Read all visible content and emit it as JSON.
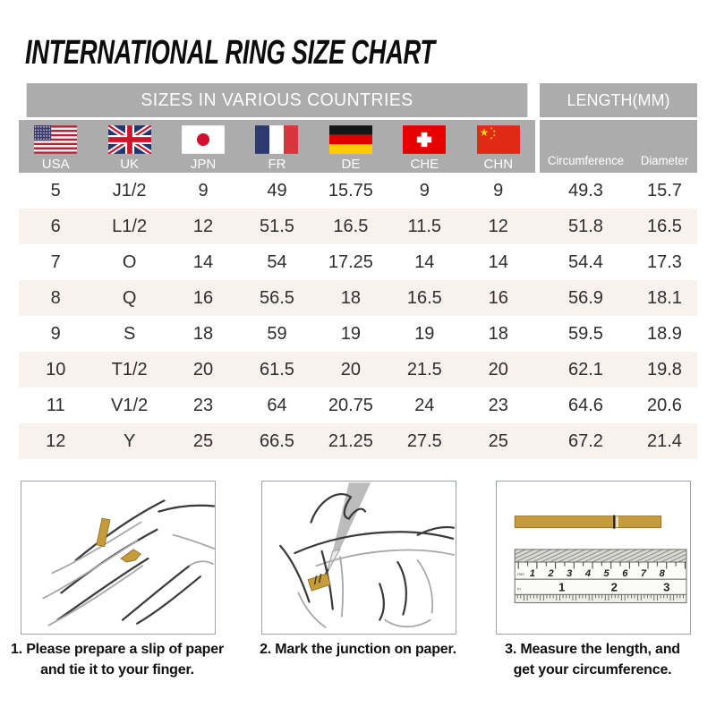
{
  "title": "INTERNATIONAL RING SIZE CHART",
  "table": {
    "header_left": "SIZES IN VARIOUS COUNTRIES",
    "header_right": "LENGTH(MM)",
    "countries": [
      {
        "code": "USA"
      },
      {
        "code": "UK"
      },
      {
        "code": "JPN"
      },
      {
        "code": "FR"
      },
      {
        "code": "DE"
      },
      {
        "code": "CHE"
      },
      {
        "code": "CHN"
      }
    ],
    "length_columns": [
      "Circumference",
      "Diameter"
    ],
    "rows": [
      [
        "5",
        "J1/2",
        "9",
        "49",
        "15.75",
        "9",
        "9",
        "49.3",
        "15.7"
      ],
      [
        "6",
        "L1/2",
        "12",
        "51.5",
        "16.5",
        "11.5",
        "12",
        "51.8",
        "16.5"
      ],
      [
        "7",
        "O",
        "14",
        "54",
        "17.25",
        "14",
        "14",
        "54.4",
        "17.3"
      ],
      [
        "8",
        "Q",
        "16",
        "56.5",
        "18",
        "16.5",
        "16",
        "56.9",
        "18.1"
      ],
      [
        "9",
        "S",
        "18",
        "59",
        "19",
        "19",
        "18",
        "59.5",
        "18.9"
      ],
      [
        "10",
        "T1/2",
        "20",
        "61.5",
        "20",
        "21.5",
        "20",
        "62.1",
        "19.8"
      ],
      [
        "11",
        "V1/2",
        "23",
        "64",
        "20.75",
        "24",
        "23",
        "64.6",
        "20.6"
      ],
      [
        "12",
        "Y",
        "25",
        "66.5",
        "21.25",
        "27.5",
        "25",
        "67.2",
        "21.4"
      ]
    ]
  },
  "chart_data": {
    "type": "table",
    "title": "INTERNATIONAL RING SIZE CHART",
    "section_headers": [
      "SIZES IN VARIOUS COUNTRIES",
      "LENGTH(MM)"
    ],
    "columns": [
      "USA",
      "UK",
      "JPN",
      "FR",
      "DE",
      "CHE",
      "CHN",
      "Circumference",
      "Diameter"
    ],
    "rows": [
      [
        5,
        "J1/2",
        9,
        49,
        15.75,
        9,
        9,
        49.3,
        15.7
      ],
      [
        6,
        "L1/2",
        12,
        51.5,
        16.5,
        11.5,
        12,
        51.8,
        16.5
      ],
      [
        7,
        "O",
        14,
        54,
        17.25,
        14,
        14,
        54.4,
        17.3
      ],
      [
        8,
        "Q",
        16,
        56.5,
        18,
        16.5,
        16,
        56.9,
        18.1
      ],
      [
        9,
        "S",
        18,
        59,
        19,
        19,
        18,
        59.5,
        18.9
      ],
      [
        10,
        "T1/2",
        20,
        61.5,
        20,
        21.5,
        20,
        62.1,
        19.8
      ],
      [
        11,
        "V1/2",
        23,
        64,
        20.75,
        24,
        23,
        64.6,
        20.6
      ],
      [
        12,
        "Y",
        25,
        66.5,
        21.25,
        27.5,
        25,
        67.2,
        21.4
      ]
    ]
  },
  "instructions": [
    {
      "line1": "1. Please prepare a slip of paper",
      "line2": "and tie it to your finger."
    },
    {
      "line1": "2. Mark the junction on paper.",
      "line2": ""
    },
    {
      "line1": "3. Measure the length, and",
      "line2": "get your circumference."
    }
  ],
  "ruler": {
    "cm_unit_label": "mm",
    "inch_unit_label": "in",
    "cm_numbers": [
      "1",
      "2",
      "3",
      "4",
      "5",
      "6",
      "7",
      "8"
    ],
    "inch_numbers": [
      "1",
      "2",
      "3"
    ]
  },
  "colors": {
    "header_gray": "#acacac",
    "row_stripe": "#f8f1ee",
    "paper_gold": "#c69b3c",
    "text_dark": "#2e2e2e"
  }
}
